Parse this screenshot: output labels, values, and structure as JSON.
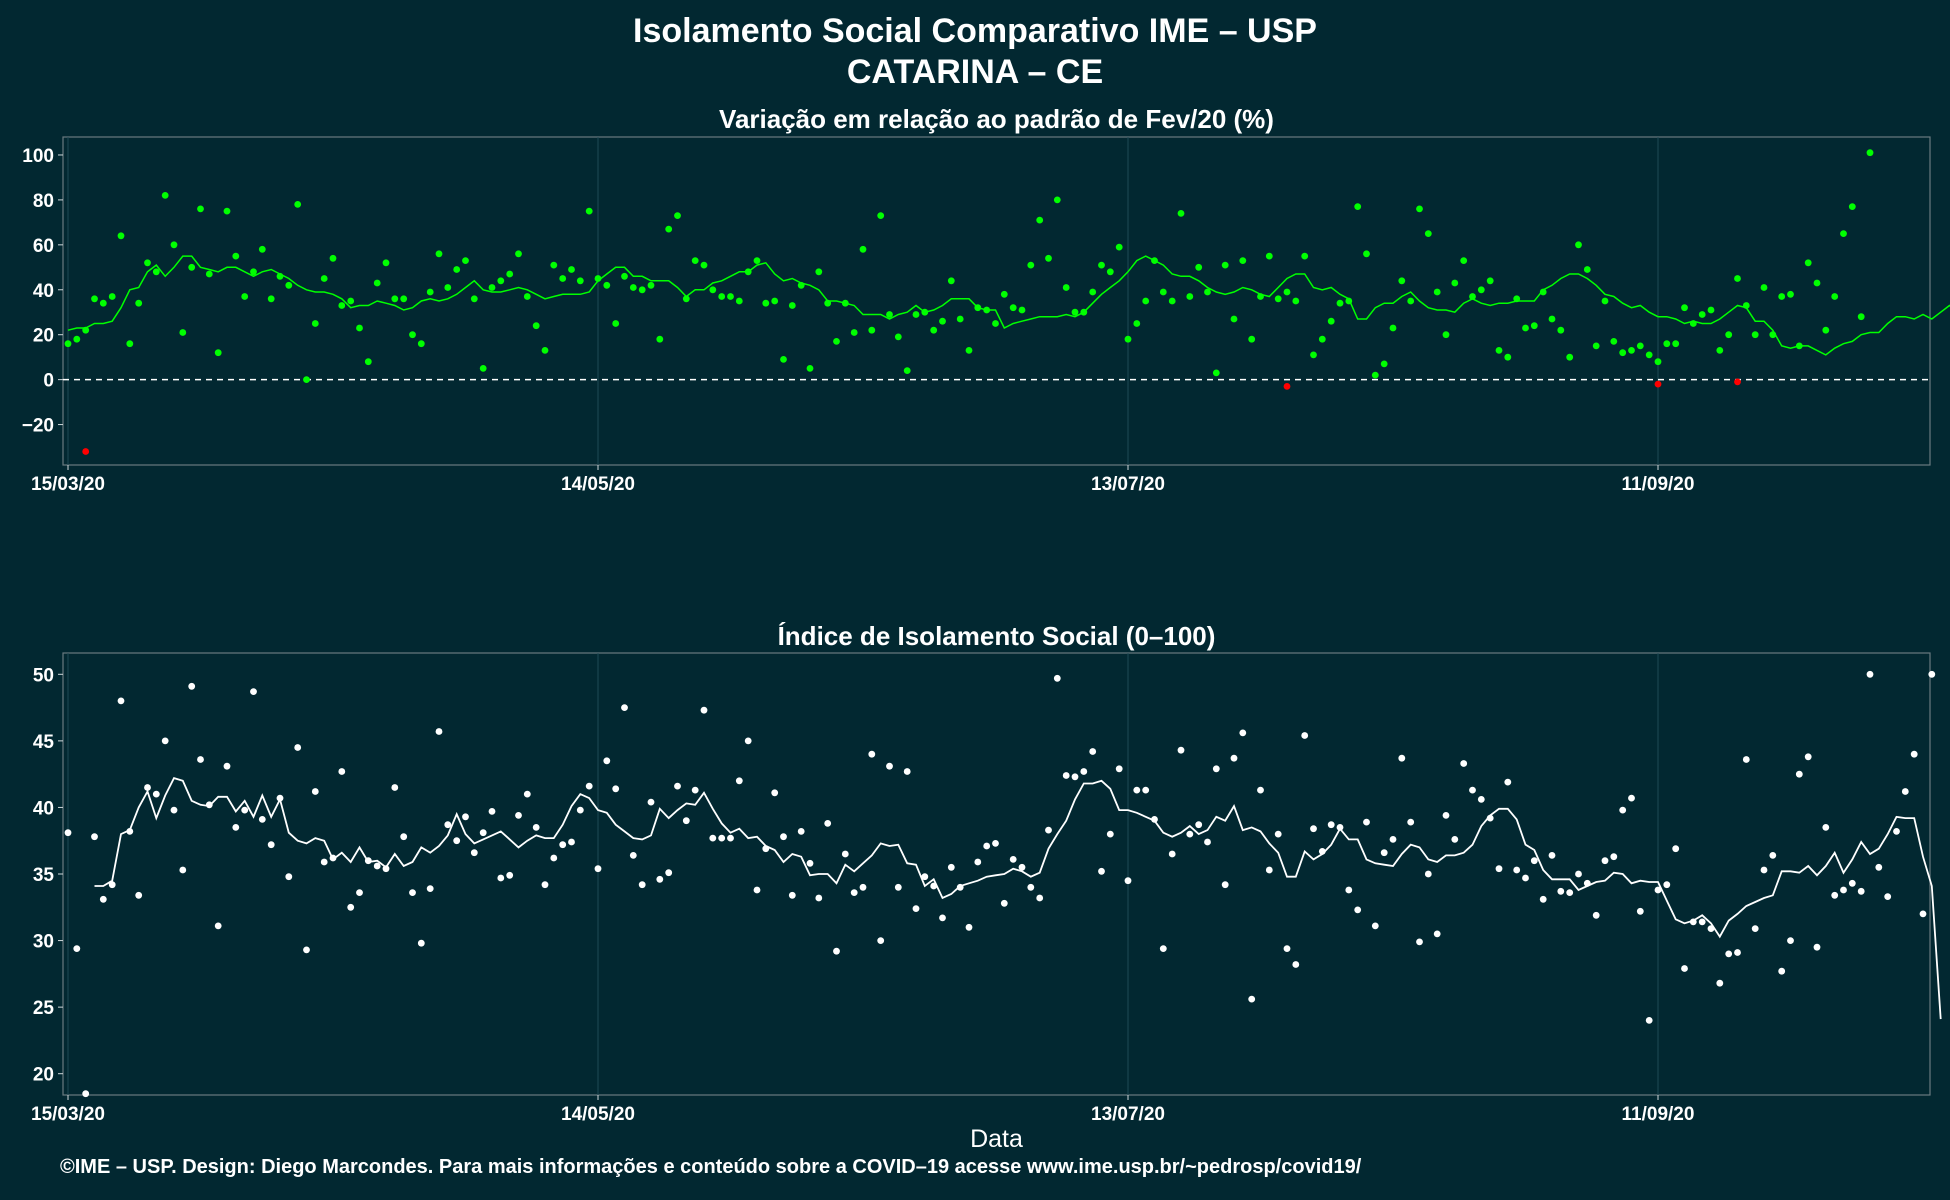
{
  "header": {
    "title": "Isolamento Social Comparativo IME – USP",
    "subtitle": "CATARINA – CE"
  },
  "footer": {
    "credit": "©IME – USP. Design: Diego Marcondes. Para mais informações e conteúdo sobre a COVID–19 acesse www.ime.usp.br/~pedrosp/covid19/"
  },
  "colors": {
    "background": "#022831",
    "above_zero": "#00ff00",
    "below_zero": "#ff0000",
    "index_color": "#ffffff",
    "reference_line": "#ffffff"
  },
  "chart_data": [
    {
      "type": "scatter",
      "title": "Variação em relação ao padrão de Fev/20 (%)",
      "xlabel": "",
      "ylabel": "",
      "x_start": "15/03/20",
      "x_end": "03/10/20",
      "x_ticks": [
        "15/03/20",
        "14/05/20",
        "13/07/20",
        "11/09/20"
      ],
      "y_ticks": [
        -20,
        0,
        20,
        40,
        60,
        80,
        100
      ],
      "ylim": [
        -38,
        108
      ],
      "reference_line": 0,
      "grid": true,
      "series": [
        {
          "kind": "points",
          "values": [
            16,
            18,
            22,
            36,
            34,
            37,
            64,
            16,
            34,
            52,
            48,
            82,
            60,
            21,
            50,
            76,
            47,
            12,
            75,
            55,
            37,
            48,
            58,
            36,
            46,
            42,
            78,
            0,
            25,
            45,
            54,
            33,
            35,
            23,
            8,
            43,
            52,
            36,
            36,
            20,
            16,
            39,
            56,
            41,
            49,
            53,
            36,
            5,
            41,
            44,
            47,
            56,
            37,
            24,
            13,
            51,
            45,
            49,
            44,
            75,
            45,
            42,
            25,
            46,
            41,
            40,
            42,
            18,
            67,
            73,
            36,
            53,
            51,
            40,
            37,
            37,
            35,
            48,
            53,
            34,
            35,
            9,
            33,
            42,
            5,
            48,
            34,
            17,
            34,
            21,
            58,
            22,
            73,
            29,
            19,
            4,
            29,
            30,
            22,
            26,
            44,
            27,
            13,
            32,
            31,
            25,
            38,
            32,
            31,
            51,
            71,
            54,
            80,
            41,
            30,
            30,
            39,
            51,
            48,
            59,
            18,
            25,
            35,
            53,
            39,
            35,
            74,
            37,
            50,
            39,
            3,
            51,
            27,
            53,
            18,
            37,
            55,
            36,
            39,
            35,
            55,
            11,
            18,
            26,
            34,
            35,
            77,
            56,
            2,
            7,
            23,
            44,
            35,
            76,
            65,
            39,
            20,
            43,
            53,
            37,
            40,
            44,
            13,
            10,
            36,
            23,
            24,
            39,
            27,
            22,
            10,
            60,
            49,
            15,
            35,
            17,
            12,
            13,
            15,
            11,
            8,
            16,
            16,
            32,
            25,
            29,
            31,
            13,
            20,
            45,
            33,
            20,
            41,
            20,
            37,
            38,
            15,
            52,
            43,
            22,
            37,
            65,
            77,
            28,
            101
          ]
        },
        {
          "kind": "below_zero_points",
          "values": [
            {
              "day": 2,
              "value": -32
            },
            {
              "day": 138,
              "value": -3
            },
            {
              "day": 180,
              "value": -2
            },
            {
              "day": 189,
              "value": -1
            }
          ]
        },
        {
          "kind": "moving_average",
          "values": [
            22,
            23,
            23,
            25,
            25,
            26,
            32,
            40,
            41,
            48,
            51,
            46,
            50,
            55,
            55,
            50,
            49,
            48,
            50,
            50,
            48,
            46,
            48,
            49,
            47,
            45,
            42,
            40,
            39,
            39,
            38,
            36,
            32,
            33,
            33,
            35,
            34,
            33,
            31,
            32,
            35,
            36,
            35,
            36,
            38,
            41,
            44,
            40,
            39,
            39,
            40,
            41,
            40,
            38,
            36,
            37,
            38,
            38,
            38,
            39,
            44,
            47,
            50,
            50,
            46,
            46,
            44,
            44,
            44,
            41,
            37,
            40,
            40,
            43,
            44,
            46,
            48,
            48,
            51,
            52,
            47,
            44,
            45,
            43,
            42,
            40,
            35,
            35,
            34,
            33,
            29,
            29,
            29,
            27,
            29,
            30,
            33,
            30,
            31,
            33,
            36,
            36,
            36,
            32,
            31,
            31,
            23,
            25,
            26,
            27,
            28,
            28,
            28,
            29,
            28,
            30,
            34,
            38,
            41,
            44,
            48,
            53,
            55,
            53,
            51,
            47,
            46,
            46,
            44,
            41,
            39,
            38,
            39,
            41,
            40,
            38,
            37,
            41,
            45,
            47,
            47,
            41,
            40,
            41,
            38,
            36,
            27,
            27,
            32,
            34,
            34,
            37,
            39,
            35,
            32,
            31,
            31,
            30,
            34,
            36,
            34,
            33,
            34,
            34,
            35,
            35,
            35,
            40,
            42,
            45,
            47,
            47,
            45,
            42,
            38,
            37,
            34,
            32,
            33,
            30,
            28,
            28,
            27,
            25,
            26,
            25,
            25,
            27,
            30,
            33,
            32,
            26,
            26,
            22,
            15,
            14,
            15,
            15,
            13,
            11,
            14,
            16,
            17,
            20,
            21,
            21,
            25,
            28,
            28,
            27,
            29,
            27,
            30,
            33,
            30,
            33,
            35,
            32,
            35,
            40,
            44,
            47,
            53
          ]
        }
      ]
    },
    {
      "type": "scatter",
      "title": "Índice de Isolamento Social (0–100)",
      "xlabel": "Data",
      "ylabel": "",
      "x_start": "15/03/20",
      "x_end": "03/10/20",
      "x_ticks": [
        "15/03/20",
        "14/05/20",
        "13/07/20",
        "11/09/20"
      ],
      "y_ticks": [
        20,
        25,
        30,
        35,
        40,
        45,
        50
      ],
      "ylim": [
        18.4,
        51.6
      ],
      "grid": true,
      "series": [
        {
          "kind": "points",
          "values": [
            38.1,
            29.4,
            18.5,
            37.8,
            33.1,
            34.2,
            48.0,
            38.2,
            33.4,
            41.5,
            41.0,
            45.0,
            39.8,
            35.3,
            49.1,
            43.6,
            40.2,
            31.1,
            43.1,
            38.5,
            39.8,
            48.7,
            39.1,
            37.2,
            40.7,
            34.8,
            44.5,
            29.3,
            41.2,
            35.9,
            36.2,
            42.7,
            32.5,
            33.6,
            36.0,
            35.6,
            35.4,
            41.5,
            37.8,
            33.6,
            29.8,
            33.9,
            45.7,
            38.7,
            37.5,
            39.3,
            36.6,
            38.1,
            39.7,
            34.7,
            34.9,
            39.4,
            41.0,
            38.5,
            34.2,
            36.2,
            37.2,
            37.4,
            39.8,
            41.6,
            35.4,
            43.5,
            41.4,
            47.5,
            36.4,
            34.2,
            40.4,
            34.6,
            35.1,
            41.6,
            39.0,
            41.3,
            47.3,
            37.7,
            37.7,
            37.7,
            42.0,
            45.0,
            33.8,
            36.9,
            41.1,
            37.8,
            33.4,
            38.2,
            35.8,
            33.2,
            38.8,
            29.2,
            36.5,
            33.6,
            34.0,
            44.0,
            30.0,
            43.1,
            34.0,
            42.7,
            32.4,
            34.8,
            34.1,
            31.7,
            35.5,
            34.0,
            31.0,
            35.9,
            37.1,
            37.3,
            32.8,
            36.1,
            35.5,
            34.0,
            33.2,
            38.3,
            49.7,
            42.4,
            42.3,
            42.7,
            44.2,
            35.2,
            38.0,
            42.9,
            34.5,
            41.3,
            41.3,
            39.1,
            29.4,
            36.5,
            44.3,
            38.0,
            38.7,
            37.4,
            42.9,
            34.2,
            43.7,
            45.6,
            25.6,
            41.3,
            35.3,
            38.0,
            29.4,
            28.2,
            45.4,
            38.4,
            36.7,
            38.7,
            38.5,
            33.8,
            32.3,
            38.9,
            31.1,
            36.6,
            37.6,
            43.7,
            38.9,
            29.9,
            35.0,
            30.5,
            39.4,
            37.6,
            43.3,
            41.3,
            40.6,
            39.2,
            35.4,
            41.9,
            35.3,
            34.7,
            36.0,
            33.1,
            36.4,
            33.7,
            33.6,
            35.0,
            34.3,
            31.9,
            36.0,
            36.3,
            39.8,
            40.7,
            32.2,
            24.0,
            33.8,
            34.2,
            36.9,
            27.9,
            31.4,
            31.4,
            30.9,
            26.8,
            29.0,
            29.1,
            43.6,
            30.9,
            35.3,
            36.4,
            27.7,
            30.0,
            42.5,
            43.8,
            29.5,
            38.5,
            33.4,
            33.8,
            34.3,
            33.7,
            50.0,
            35.5,
            33.3,
            38.2,
            41.2,
            44.0,
            32.0,
            50.0
          ]
        },
        {
          "kind": "moving_average",
          "start_day": 3,
          "values": [
            34.1,
            34.1,
            34.5,
            38.0,
            38.3,
            40.0,
            41.2,
            39.2,
            40.9,
            42.2,
            42.0,
            40.5,
            40.2,
            40.1,
            40.8,
            40.8,
            39.7,
            40.5,
            39.3,
            40.9,
            39.3,
            40.6,
            38.1,
            37.5,
            37.3,
            37.7,
            37.5,
            36.1,
            36.6,
            35.9,
            37.0,
            35.9,
            36.0,
            35.5,
            36.5,
            35.6,
            35.9,
            37.0,
            36.6,
            37.1,
            37.9,
            39.5,
            38.0,
            37.3,
            37.6,
            37.9,
            38.2,
            37.6,
            37.0,
            37.5,
            37.9,
            37.7,
            37.7,
            38.7,
            40.1,
            41.0,
            40.7,
            39.8,
            39.6,
            38.7,
            38.2,
            37.7,
            37.6,
            37.9,
            39.9,
            39.2,
            39.8,
            40.3,
            40.2,
            41.1,
            39.9,
            38.8,
            38.1,
            38.4,
            37.7,
            37.8,
            37.1,
            36.8,
            35.9,
            36.5,
            36.3,
            34.9,
            35.0,
            35.0,
            34.3,
            35.7,
            35.2,
            35.8,
            36.4,
            37.3,
            37.1,
            37.2,
            35.8,
            35.7,
            34.1,
            34.6,
            33.2,
            33.5,
            34.1,
            34.3,
            34.5,
            34.8,
            34.9,
            35.0,
            35.4,
            35.2,
            34.8,
            35.1,
            36.9,
            38.0,
            39.0,
            40.6,
            41.8,
            41.8,
            42.0,
            41.4,
            39.8,
            39.8,
            39.6,
            39.3,
            39.0,
            38.1,
            37.8,
            38.1,
            38.6,
            38.0,
            38.3,
            39.3,
            39.0,
            40.1,
            38.3,
            38.5,
            38.2,
            37.3,
            36.6,
            34.8,
            34.8,
            36.7,
            36.1,
            36.5,
            37.2,
            38.4,
            37.6,
            37.6,
            36.1,
            35.8,
            35.7,
            35.6,
            36.5,
            37.2,
            37.0,
            36.1,
            35.9,
            36.4,
            36.4,
            36.6,
            37.2,
            38.6,
            39.4,
            39.9,
            39.9,
            39.1,
            37.2,
            36.8,
            35.3,
            34.6,
            34.6,
            34.6,
            33.8,
            34.1,
            34.4,
            34.5,
            35.1,
            35.0,
            34.3,
            34.5,
            34.4,
            34.4,
            33.0,
            31.6,
            31.3,
            31.5,
            31.9,
            31.3,
            30.3,
            31.5,
            32.0,
            32.6,
            32.9,
            33.2,
            33.4,
            35.2,
            35.2,
            35.1,
            35.6,
            34.9,
            35.6,
            36.6,
            35.1,
            36.1,
            37.4,
            36.5,
            36.9,
            38.0,
            39.3,
            39.2,
            39.2,
            36.3,
            34.1,
            24.1
          ]
        }
      ]
    }
  ]
}
